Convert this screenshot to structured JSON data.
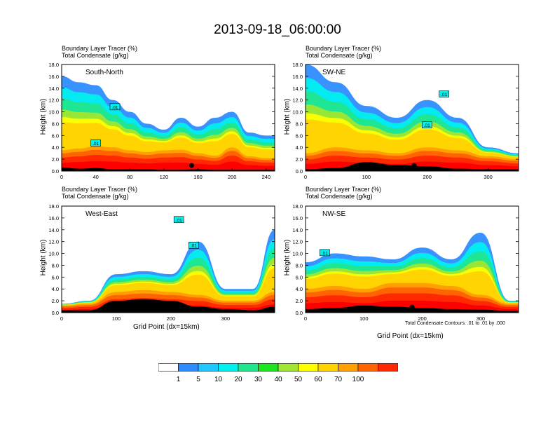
{
  "title": "2013-09-18_06:00:00",
  "colors": {
    "levels": [
      "#ffffff",
      "#2d8cff",
      "#1ec8ff",
      "#00f0f0",
      "#20e68c",
      "#1ee61e",
      "#a0e632",
      "#ffff00",
      "#ffd200",
      "#ffa000",
      "#ff6400",
      "#ff2800",
      "#ff0000"
    ],
    "terrain": "#000000"
  },
  "panels": [
    {
      "id": "south-north",
      "caption_line1": "Boundary Layer Tracer    (%)",
      "caption_line2": "Total Condensate    (g/kg)",
      "inner_label": "South-North",
      "ylabel": "Height (km)",
      "xlabel": "",
      "xticks": [
        "0",
        "40",
        "80",
        "120",
        "160",
        "200",
        "240"
      ],
      "yticks": [
        "0.0",
        "2.0",
        "4.0",
        "6.0",
        "8.0",
        "10.0",
        "12.0",
        "14.0",
        "16.0",
        "18.0"
      ],
      "contour_labels": [
        ".01",
        ".01"
      ]
    },
    {
      "id": "sw-ne",
      "caption_line1": "Boundary Layer Tracer    (%)",
      "caption_line2": "Total Condensate    (g/kg)",
      "inner_label": "SW-NE",
      "ylabel": "Height (km)",
      "xlabel": "",
      "xticks": [
        "0",
        "100",
        "200",
        "300"
      ],
      "yticks": [
        "0.0",
        "2.0",
        "4.0",
        "6.0",
        "8.0",
        "10.0",
        "12.0",
        "14.0",
        "16.0",
        "18.0"
      ],
      "contour_labels": [
        ".01",
        ".01"
      ]
    },
    {
      "id": "west-east",
      "caption_line1": "Boundary Layer Tracer    (%)",
      "caption_line2": "Total Condensate    (g/kg)",
      "inner_label": "West-East",
      "ylabel": "Height (km)",
      "xlabel": "Grid Point (dx=15km)",
      "xticks": [
        "0",
        "100",
        "200",
        "300"
      ],
      "yticks": [
        "0.0",
        "2.0",
        "4.0",
        "6.0",
        "8.0",
        "10.0",
        "12.0",
        "14.0",
        "16.0",
        "18.0"
      ],
      "contour_labels": [
        ".01",
        ".01"
      ]
    },
    {
      "id": "nw-se",
      "caption_line1": "Boundary Layer Tracer    (%)",
      "caption_line2": "Total Condensate    (g/kg)",
      "inner_label": "NW-SE",
      "ylabel": "Height (km)",
      "xlabel": "Grid Point (dx=15km)",
      "footnote": "Total Condensate Contours: .01 to .01 by .000",
      "xticks": [
        "0",
        "100",
        "200",
        "300"
      ],
      "yticks": [
        "0.0",
        "2.0",
        "4.0",
        "6.0",
        "8.0",
        "10.0",
        "12.0",
        "14.0",
        "16.0",
        "18.0"
      ],
      "contour_labels": [
        ".01"
      ]
    }
  ],
  "colorbar": {
    "labels": [
      "1",
      "5",
      "10",
      "20",
      "30",
      "40",
      "50",
      "60",
      "70",
      "100"
    ]
  },
  "chart_data": [
    {
      "type": "heatmap",
      "title": "South-North",
      "xlabel": "",
      "ylabel": "Height (km)",
      "xlim": [
        0,
        250
      ],
      "ylim": [
        0,
        18
      ],
      "units": "Boundary Layer Tracer (%)",
      "x": [
        0,
        20,
        40,
        60,
        80,
        100,
        120,
        140,
        160,
        180,
        200,
        220,
        240
      ],
      "boundary_layer_top_km": [
        3.5,
        3.8,
        4.2,
        4.0,
        3.5,
        3.2,
        3.5,
        3.6,
        3.0,
        2.6,
        4.0,
        2.5,
        2.2
      ],
      "tracer_extent_top_km": [
        16.0,
        15.0,
        14.5,
        12.0,
        10.0,
        8.0,
        7.0,
        9.0,
        7.5,
        9.0,
        10.0,
        6.5,
        6.0
      ],
      "terrain_height_km": [
        0.6,
        0.4,
        0.5,
        0.3,
        0.3,
        0.3,
        0.2,
        0.2,
        0.3,
        0.2,
        0.2,
        0.2,
        0.2
      ]
    },
    {
      "type": "heatmap",
      "title": "SW-NE",
      "xlabel": "",
      "ylabel": "Height (km)",
      "xlim": [
        0,
        350
      ],
      "ylim": [
        0,
        18
      ],
      "units": "Boundary Layer Tracer (%)",
      "x": [
        0,
        50,
        100,
        150,
        200,
        250,
        300,
        350
      ],
      "boundary_layer_top_km": [
        3.0,
        4.0,
        3.5,
        3.0,
        4.0,
        3.5,
        2.5,
        2.0
      ],
      "tracer_extent_top_km": [
        18.0,
        15.0,
        11.0,
        9.0,
        12.0,
        9.0,
        4.0,
        3.0
      ],
      "terrain_height_km": [
        0.3,
        0.5,
        1.5,
        1.0,
        0.8,
        0.4,
        0.3,
        0.3
      ]
    },
    {
      "type": "heatmap",
      "title": "West-East",
      "xlabel": "Grid Point (dx=15km)",
      "ylabel": "Height (km)",
      "xlim": [
        0,
        390
      ],
      "ylim": [
        0,
        18
      ],
      "units": "Boundary Layer Tracer (%)",
      "x": [
        0,
        50,
        100,
        150,
        200,
        250,
        300,
        350,
        390
      ],
      "boundary_layer_top_km": [
        1.2,
        1.5,
        3.5,
        3.8,
        3.5,
        3.0,
        2.0,
        2.0,
        3.5
      ],
      "tracer_extent_top_km": [
        1.5,
        2.0,
        6.5,
        7.0,
        6.5,
        12.0,
        4.0,
        4.0,
        14.0
      ],
      "terrain_height_km": [
        0.4,
        0.4,
        2.0,
        2.3,
        2.0,
        1.0,
        0.6,
        0.4,
        1.0
      ]
    },
    {
      "type": "heatmap",
      "title": "NW-SE",
      "xlabel": "Grid Point (dx=15km)",
      "ylabel": "Height (km)",
      "xlim": [
        0,
        365
      ],
      "ylim": [
        0,
        18
      ],
      "units": "Boundary Layer Tracer (%)",
      "x": [
        0,
        50,
        100,
        150,
        200,
        250,
        300,
        350
      ],
      "boundary_layer_top_km": [
        4.0,
        4.5,
        4.0,
        5.0,
        5.0,
        4.5,
        3.0,
        1.5
      ],
      "tracer_extent_top_km": [
        8.5,
        10.0,
        9.5,
        9.0,
        11.0,
        9.0,
        13.5,
        2.0
      ],
      "terrain_height_km": [
        0.6,
        0.8,
        1.2,
        1.0,
        0.8,
        0.6,
        0.5,
        0.3
      ]
    }
  ]
}
